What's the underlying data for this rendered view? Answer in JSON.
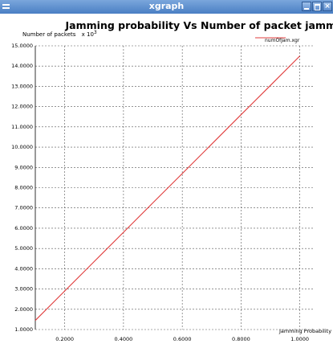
{
  "window": {
    "title": "xgraph",
    "close_glyph": "×"
  },
  "chart_data": {
    "type": "line",
    "title": "Jamming probability Vs Number of packet jammed",
    "ylabel": "Number of packets",
    "ylabel_multiplier_base": "x 10",
    "ylabel_multiplier_exp": "3",
    "xlabel": "Jamming Probability p",
    "xlim": [
      0.1,
      1.05
    ],
    "ylim": [
      1.0,
      15.0
    ],
    "x_ticks": [
      "0.2000",
      "0.4000",
      "0.6000",
      "0.8000",
      "1.0000"
    ],
    "x_tick_values": [
      0.2,
      0.4,
      0.6,
      0.8,
      1.0
    ],
    "y_ticks": [
      "1.0000",
      "2.0000",
      "3.0000",
      "4.0000",
      "5.0000",
      "6.0000",
      "7.0000",
      "8.0000",
      "9.0000",
      "10.0000",
      "11.0000",
      "12.0000",
      "13.0000",
      "14.0000",
      "15.0000"
    ],
    "y_tick_values": [
      1,
      2,
      3,
      4,
      5,
      6,
      7,
      8,
      9,
      10,
      11,
      12,
      13,
      14,
      15
    ],
    "grid": true,
    "legend_position": "top-right",
    "series": [
      {
        "name": "numOfJam.xgr",
        "color": "#e03c3c",
        "x": [
          0.1,
          0.2,
          0.3,
          0.4,
          0.5,
          0.6,
          0.7,
          0.8,
          0.9,
          1.0
        ],
        "y": [
          1.45,
          2.9,
          4.35,
          5.8,
          7.25,
          8.7,
          10.15,
          11.6,
          13.05,
          14.5
        ]
      }
    ]
  }
}
